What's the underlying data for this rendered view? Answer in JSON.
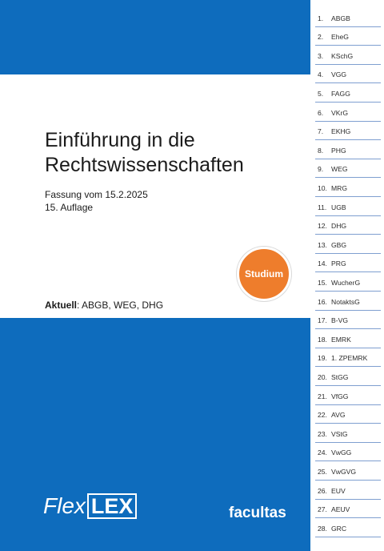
{
  "book": {
    "title_line1": "Einführung in die",
    "title_line2": "Rechtswissenschaften",
    "version": "Fassung vom 15.2.2025",
    "edition": "15. Auflage",
    "aktuell_label": "Aktuell",
    "aktuell_value": ": ABGB, WEG, DHG",
    "badge": "Studium",
    "series_flex": "Flex",
    "series_lex": "LEX",
    "publisher": "facultas"
  },
  "colors": {
    "blue": "#0e6cbd",
    "orange": "#ee7d2c",
    "tab_line": "#7f9fd0"
  },
  "register": [
    {
      "num": "1.",
      "label": "ABGB"
    },
    {
      "num": "2.",
      "label": "EheG"
    },
    {
      "num": "3.",
      "label": "KSchG"
    },
    {
      "num": "4.",
      "label": "VGG"
    },
    {
      "num": "5.",
      "label": "FAGG"
    },
    {
      "num": "6.",
      "label": "VKrG"
    },
    {
      "num": "7.",
      "label": "EKHG"
    },
    {
      "num": "8.",
      "label": "PHG"
    },
    {
      "num": "9.",
      "label": "WEG"
    },
    {
      "num": "10.",
      "label": "MRG"
    },
    {
      "num": "11.",
      "label": "UGB"
    },
    {
      "num": "12.",
      "label": "DHG"
    },
    {
      "num": "13.",
      "label": "GBG"
    },
    {
      "num": "14.",
      "label": "PRG"
    },
    {
      "num": "15.",
      "label": "WucherG"
    },
    {
      "num": "16.",
      "label": "NotaktsG"
    },
    {
      "num": "17.",
      "label": "B-VG"
    },
    {
      "num": "18.",
      "label": "EMRK"
    },
    {
      "num": "19.",
      "label": "1. ZPEMRK"
    },
    {
      "num": "20.",
      "label": "StGG"
    },
    {
      "num": "21.",
      "label": "VfGG"
    },
    {
      "num": "22.",
      "label": "AVG"
    },
    {
      "num": "23.",
      "label": "VStG"
    },
    {
      "num": "24.",
      "label": "VwGG"
    },
    {
      "num": "25.",
      "label": "VwGVG"
    },
    {
      "num": "26.",
      "label": "EUV"
    },
    {
      "num": "27.",
      "label": "AEUV"
    },
    {
      "num": "28.",
      "label": "GRC"
    }
  ]
}
